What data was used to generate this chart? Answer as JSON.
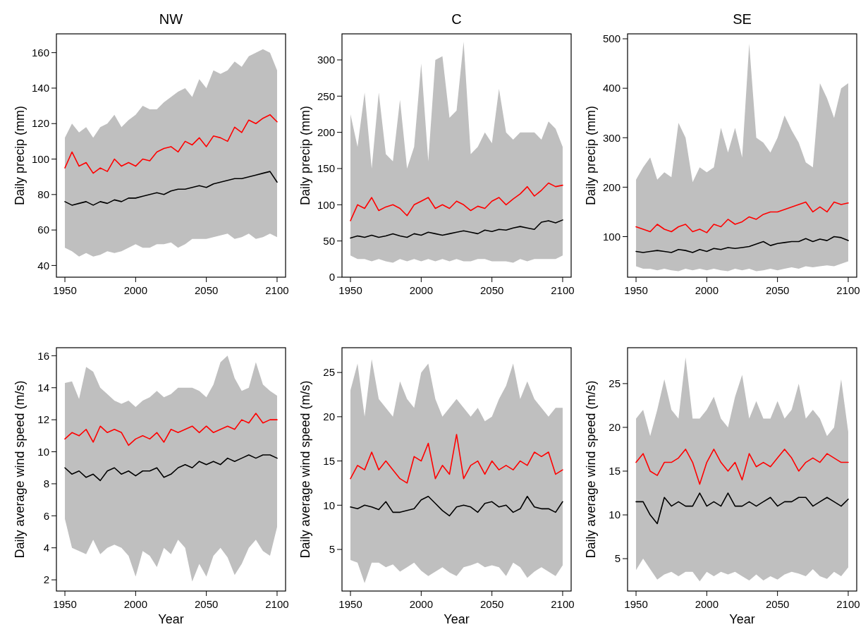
{
  "chart_data": [
    {
      "type": "line",
      "title": "NW",
      "ylabel": "Daily precip (mm)",
      "x": [
        1950,
        1955,
        1960,
        1965,
        1970,
        1975,
        1980,
        1985,
        1990,
        1995,
        2000,
        2005,
        2010,
        2015,
        2020,
        2025,
        2030,
        2035,
        2040,
        2045,
        2050,
        2055,
        2060,
        2065,
        2070,
        2075,
        2080,
        2085,
        2090,
        2095,
        2100
      ],
      "xlim": [
        1944,
        2106
      ],
      "xticks": [
        1950,
        2000,
        2050,
        2100
      ],
      "ylim": [
        33.4,
        170.6
      ],
      "yticks": [
        40,
        60,
        80,
        100,
        120,
        140,
        160
      ],
      "series": [
        {
          "color": "#000000",
          "values": [
            76,
            74,
            75,
            76,
            74,
            76,
            75,
            77,
            76,
            78,
            78,
            79,
            80,
            81,
            80,
            82,
            83,
            83,
            84,
            85,
            84,
            86,
            87,
            88,
            89,
            89,
            90,
            91,
            92,
            93,
            87
          ],
          "lower": [
            50,
            48,
            45,
            47,
            45,
            46,
            48,
            47,
            48,
            50,
            52,
            50,
            50,
            52,
            52,
            53,
            50,
            52,
            55,
            55,
            55,
            56,
            57,
            58,
            55,
            56,
            58,
            55,
            56,
            58,
            56
          ],
          "upper": [
            112,
            120,
            115,
            118,
            112,
            118,
            120,
            125,
            118,
            122,
            125,
            130,
            128,
            128,
            132,
            135,
            138,
            140,
            135,
            145,
            140,
            150,
            148,
            150,
            155,
            152,
            158,
            160,
            162,
            160,
            150
          ]
        },
        {
          "color": "#ff0000",
          "values": [
            95,
            104,
            96,
            98,
            92,
            95,
            93,
            100,
            96,
            98,
            96,
            100,
            99,
            104,
            106,
            107,
            104,
            110,
            108,
            112,
            107,
            113,
            112,
            110,
            118,
            115,
            122,
            120,
            123,
            125,
            121
          ]
        }
      ]
    },
    {
      "type": "line",
      "title": "C",
      "ylabel": "Daily precip (mm)",
      "x": [
        1950,
        1955,
        1960,
        1965,
        1970,
        1975,
        1980,
        1985,
        1990,
        1995,
        2000,
        2005,
        2010,
        2015,
        2020,
        2025,
        2030,
        2035,
        2040,
        2045,
        2050,
        2055,
        2060,
        2065,
        2070,
        2075,
        2080,
        2085,
        2090,
        2095,
        2100
      ],
      "xlim": [
        1944,
        2106
      ],
      "xticks": [
        1950,
        2000,
        2050,
        2100
      ],
      "ylim": [
        0,
        336
      ],
      "yticks": [
        0,
        50,
        100,
        150,
        200,
        250,
        300
      ],
      "series": [
        {
          "color": "#000000",
          "values": [
            54,
            57,
            55,
            58,
            55,
            57,
            60,
            57,
            55,
            60,
            58,
            62,
            60,
            58,
            60,
            62,
            64,
            62,
            60,
            65,
            63,
            66,
            65,
            68,
            70,
            68,
            66,
            76,
            78,
            75,
            79
          ],
          "lower": [
            30,
            25,
            25,
            22,
            25,
            22,
            20,
            25,
            22,
            25,
            22,
            25,
            22,
            25,
            22,
            25,
            22,
            22,
            25,
            25,
            22,
            22,
            22,
            20,
            25,
            22,
            25,
            25,
            25,
            25,
            30
          ],
          "upper": [
            225,
            180,
            255,
            150,
            255,
            170,
            160,
            245,
            150,
            180,
            295,
            160,
            300,
            305,
            220,
            230,
            325,
            170,
            180,
            200,
            185,
            260,
            200,
            190,
            200,
            200,
            200,
            190,
            215,
            205,
            180
          ]
        },
        {
          "color": "#ff0000",
          "values": [
            78,
            100,
            95,
            110,
            92,
            97,
            100,
            95,
            85,
            100,
            105,
            110,
            95,
            100,
            95,
            105,
            100,
            92,
            98,
            95,
            105,
            110,
            100,
            108,
            115,
            125,
            112,
            120,
            130,
            125,
            127
          ]
        }
      ]
    },
    {
      "type": "line",
      "title": "SE",
      "ylabel": "Daily precip (mm)",
      "x": [
        1950,
        1955,
        1960,
        1965,
        1970,
        1975,
        1980,
        1985,
        1990,
        1995,
        2000,
        2005,
        2010,
        2015,
        2020,
        2025,
        2030,
        2035,
        2040,
        2045,
        2050,
        2055,
        2060,
        2065,
        2070,
        2075,
        2080,
        2085,
        2090,
        2095,
        2100
      ],
      "xlim": [
        1944,
        2106
      ],
      "xticks": [
        1950,
        2000,
        2050,
        2100
      ],
      "ylim": [
        18,
        510
      ],
      "yticks": [
        100,
        200,
        300,
        400,
        500
      ],
      "series": [
        {
          "color": "#000000",
          "values": [
            70,
            68,
            70,
            72,
            70,
            68,
            74,
            72,
            68,
            74,
            70,
            76,
            74,
            78,
            76,
            78,
            80,
            85,
            90,
            82,
            86,
            88,
            90,
            90,
            96,
            90,
            95,
            92,
            100,
            98,
            92
          ],
          "lower": [
            40,
            35,
            35,
            32,
            35,
            32,
            30,
            35,
            32,
            35,
            32,
            35,
            32,
            30,
            35,
            32,
            35,
            30,
            32,
            35,
            32,
            35,
            38,
            35,
            40,
            38,
            40,
            42,
            40,
            45,
            50
          ],
          "upper": [
            215,
            240,
            260,
            215,
            230,
            220,
            330,
            300,
            210,
            240,
            230,
            240,
            320,
            270,
            320,
            260,
            490,
            300,
            290,
            270,
            300,
            345,
            315,
            290,
            250,
            240,
            410,
            380,
            340,
            400,
            410
          ]
        },
        {
          "color": "#ff0000",
          "values": [
            120,
            115,
            110,
            125,
            115,
            110,
            120,
            125,
            110,
            115,
            108,
            125,
            120,
            135,
            125,
            130,
            140,
            135,
            145,
            150,
            150,
            155,
            160,
            165,
            170,
            150,
            160,
            150,
            170,
            165,
            168
          ]
        }
      ]
    },
    {
      "type": "line",
      "xlabel": "Year",
      "ylabel": "Daily average wind speed (m/s)",
      "x": [
        1950,
        1955,
        1960,
        1965,
        1970,
        1975,
        1980,
        1985,
        1990,
        1995,
        2000,
        2005,
        2010,
        2015,
        2020,
        2025,
        2030,
        2035,
        2040,
        2045,
        2050,
        2055,
        2060,
        2065,
        2070,
        2075,
        2080,
        2085,
        2090,
        2095,
        2100
      ],
      "xlim": [
        1944,
        2106
      ],
      "xticks": [
        1950,
        2000,
        2050,
        2100
      ],
      "ylim": [
        1.3,
        16.5
      ],
      "yticks": [
        2,
        4,
        6,
        8,
        10,
        12,
        14,
        16
      ],
      "series": [
        {
          "color": "#000000",
          "values": [
            9.0,
            8.6,
            8.8,
            8.4,
            8.6,
            8.2,
            8.8,
            9.0,
            8.6,
            8.8,
            8.5,
            8.8,
            8.8,
            9.0,
            8.4,
            8.6,
            9.0,
            9.2,
            9.0,
            9.4,
            9.2,
            9.4,
            9.2,
            9.6,
            9.4,
            9.6,
            9.8,
            9.6,
            9.8,
            9.8,
            9.6
          ],
          "lower": [
            5.8,
            4,
            3.8,
            3.6,
            4.5,
            3.6,
            4,
            4.2,
            4,
            3.5,
            2.2,
            3.8,
            3.5,
            2.8,
            4,
            3.6,
            4.5,
            4,
            1.9,
            3,
            2.2,
            3.5,
            4,
            3.4,
            2.3,
            3,
            4,
            4.5,
            3.8,
            3.5,
            5.3
          ],
          "upper": [
            14.3,
            14.4,
            13.3,
            15.3,
            15,
            14,
            13.6,
            13.2,
            13,
            13.2,
            12.8,
            13.2,
            13.4,
            13.8,
            13.4,
            13.6,
            14,
            14,
            14,
            13.8,
            13.4,
            14.2,
            15.6,
            16,
            14.6,
            13.8,
            14,
            15.6,
            14.2,
            13.8,
            13.5
          ]
        },
        {
          "color": "#ff0000",
          "values": [
            10.8,
            11.2,
            11.0,
            11.4,
            10.6,
            11.6,
            11.2,
            11.4,
            11.2,
            10.4,
            10.8,
            11.0,
            10.8,
            11.2,
            10.6,
            11.4,
            11.2,
            11.4,
            11.6,
            11.2,
            11.6,
            11.2,
            11.4,
            11.6,
            11.4,
            12.0,
            11.8,
            12.4,
            11.8,
            12.0,
            12.0
          ]
        }
      ]
    },
    {
      "type": "line",
      "xlabel": "Year",
      "ylabel": "Daily average wind speed (m/s)",
      "x": [
        1950,
        1955,
        1960,
        1965,
        1970,
        1975,
        1980,
        1985,
        1990,
        1995,
        2000,
        2005,
        2010,
        2015,
        2020,
        2025,
        2030,
        2035,
        2040,
        2045,
        2050,
        2055,
        2060,
        2065,
        2070,
        2075,
        2080,
        2085,
        2090,
        2095,
        2100
      ],
      "xlim": [
        1944,
        2106
      ],
      "xticks": [
        1950,
        2000,
        2050,
        2100
      ],
      "ylim": [
        0.3,
        27.8
      ],
      "yticks": [
        5,
        10,
        15,
        20,
        25
      ],
      "series": [
        {
          "color": "#000000",
          "values": [
            9.8,
            9.6,
            10,
            9.8,
            9.5,
            10.4,
            9.2,
            9.2,
            9.4,
            9.6,
            10.6,
            11,
            10.2,
            9.4,
            8.8,
            9.8,
            10,
            9.8,
            9.2,
            10.2,
            10.4,
            9.8,
            10,
            9.2,
            9.6,
            11,
            9.8,
            9.6,
            9.6,
            9.2,
            10.4
          ],
          "lower": [
            3.8,
            3.5,
            1.2,
            3.5,
            3.5,
            3,
            3.3,
            2.5,
            3,
            3.5,
            2.6,
            2,
            2.5,
            3,
            2.4,
            2,
            3,
            3.2,
            3.5,
            3,
            3.2,
            3,
            2,
            3.5,
            3,
            1.8,
            2.5,
            3,
            2.5,
            2,
            3.2
          ],
          "upper": [
            23,
            26,
            20,
            26.5,
            22,
            21,
            20,
            24,
            22,
            21,
            25,
            26,
            22,
            20,
            21,
            22,
            21,
            20,
            21,
            19.5,
            20,
            22,
            23.5,
            26,
            22,
            24,
            22,
            21,
            20,
            21,
            21
          ]
        },
        {
          "color": "#ff0000",
          "values": [
            13,
            14.5,
            14,
            16,
            14,
            15,
            14,
            13,
            12.5,
            15.5,
            15,
            17,
            13,
            14.5,
            13.5,
            18,
            13,
            14.5,
            15,
            13.5,
            15,
            14,
            14.5,
            14,
            15,
            14.5,
            16,
            15.5,
            16,
            13.5,
            14
          ]
        }
      ]
    },
    {
      "type": "line",
      "xlabel": "Year",
      "ylabel": "Daily average wind speed (m/s)",
      "x": [
        1950,
        1955,
        1960,
        1965,
        1970,
        1975,
        1980,
        1985,
        1990,
        1995,
        2000,
        2005,
        2010,
        2015,
        2020,
        2025,
        2030,
        2035,
        2040,
        2045,
        2050,
        2055,
        2060,
        2065,
        2070,
        2075,
        2080,
        2085,
        2090,
        2095,
        2100
      ],
      "xlim": [
        1944,
        2106
      ],
      "xticks": [
        1950,
        2000,
        2050,
        2100
      ],
      "ylim": [
        1.3,
        29.1
      ],
      "yticks": [
        5,
        10,
        15,
        20,
        25
      ],
      "series": [
        {
          "color": "#000000",
          "values": [
            11.5,
            11.5,
            10,
            9,
            12,
            11,
            11.5,
            11,
            11,
            12.5,
            11,
            11.5,
            11,
            12.5,
            11,
            11,
            11.5,
            11,
            11.5,
            12,
            11,
            11.5,
            11.5,
            12,
            12,
            11,
            11.5,
            12,
            11.5,
            11,
            11.8
          ],
          "lower": [
            3.7,
            5,
            3.8,
            2.6,
            3.2,
            3.5,
            3,
            3.5,
            3.5,
            2.4,
            3.5,
            3,
            3.5,
            3.2,
            3.5,
            3,
            2.5,
            3.2,
            2.5,
            3,
            2.6,
            3.2,
            3.5,
            3.3,
            3,
            3.8,
            3,
            2.7,
            3.5,
            3,
            4
          ],
          "upper": [
            21,
            22,
            19,
            22,
            25.5,
            22,
            21,
            28,
            21,
            21,
            22,
            23.5,
            21,
            20,
            23.5,
            26,
            21,
            23,
            21,
            21,
            23,
            21,
            22,
            25,
            21,
            22,
            21,
            19,
            20,
            25.5,
            19.5
          ]
        },
        {
          "color": "#ff0000",
          "values": [
            16,
            17,
            15,
            14.5,
            16,
            16,
            16.5,
            17.5,
            16,
            13.5,
            16,
            17.5,
            16,
            15,
            16,
            14,
            17,
            15.5,
            16,
            15.5,
            16.5,
            17.5,
            16.5,
            15,
            16,
            16.5,
            16,
            17,
            16.5,
            16,
            16
          ]
        }
      ]
    }
  ]
}
